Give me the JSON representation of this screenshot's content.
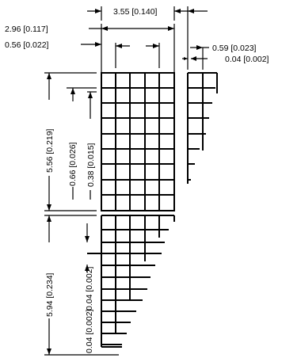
{
  "dimensions": {
    "top_width": "3.55 [0.140]",
    "left_offset": "2.96 [0.117]",
    "pad_gap": "0.56 [0.022]",
    "side_width": "0.59 [0.023]",
    "side_gap": "0.04 [0.002]",
    "upper_height": "5.56 [0.219]",
    "row_pitch": "0.66 [0.026]",
    "row_gap": "0.38 [0.015]",
    "lower_height": "5.94 [0.234]",
    "lower_gap_a": "0.04 [0.002]",
    "lower_gap_b": "0.04 [0.002]"
  }
}
